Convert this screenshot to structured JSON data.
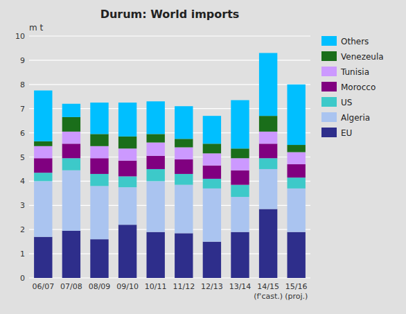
{
  "chart_data": {
    "type": "bar",
    "stacked": true,
    "title": "Durum: World imports",
    "y_label": "m t",
    "categories": [
      "06/07",
      "07/08",
      "08/09",
      "09/10",
      "10/11",
      "11/12",
      "12/13",
      "13/14",
      "14/15\n(f'cast.)",
      "15/16\n(proj.)"
    ],
    "series": [
      {
        "name": "EU",
        "color": "#2e2e8b",
        "values": [
          1.7,
          1.95,
          1.6,
          2.2,
          1.9,
          1.85,
          1.5,
          1.9,
          2.85,
          1.9
        ]
      },
      {
        "name": "Algeria",
        "color": "#aac4f0",
        "values": [
          2.3,
          2.5,
          2.2,
          1.55,
          2.1,
          2.0,
          2.2,
          1.45,
          1.65,
          1.8
        ]
      },
      {
        "name": "US",
        "color": "#3dc9c9",
        "values": [
          0.35,
          0.5,
          0.5,
          0.45,
          0.5,
          0.45,
          0.4,
          0.5,
          0.45,
          0.45
        ]
      },
      {
        "name": "Morocco",
        "color": "#800080",
        "values": [
          0.6,
          0.6,
          0.65,
          0.65,
          0.55,
          0.6,
          0.55,
          0.6,
          0.6,
          0.55
        ]
      },
      {
        "name": "Tunisia",
        "color": "#cc99ff",
        "values": [
          0.5,
          0.5,
          0.5,
          0.5,
          0.55,
          0.5,
          0.5,
          0.5,
          0.5,
          0.5
        ]
      },
      {
        "name": "Venezeula",
        "color": "#1a6e1a",
        "values": [
          0.2,
          0.6,
          0.5,
          0.5,
          0.35,
          0.35,
          0.4,
          0.4,
          0.65,
          0.3
        ]
      },
      {
        "name": "Others",
        "color": "#00bfff",
        "values": [
          2.1,
          0.55,
          1.3,
          1.4,
          1.35,
          1.35,
          1.15,
          2.0,
          2.6,
          2.5
        ]
      }
    ],
    "ylim": [
      0,
      10
    ],
    "yticks": [
      0,
      1,
      2,
      3,
      4,
      5,
      6,
      7,
      8,
      9,
      10
    ],
    "grid": true,
    "legend": "right"
  }
}
